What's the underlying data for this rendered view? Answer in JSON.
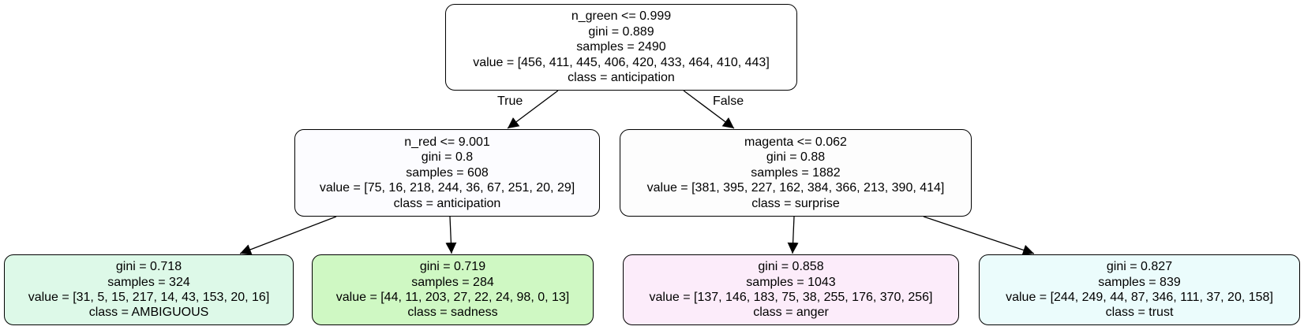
{
  "nodes": {
    "root": {
      "split": "n_green <= 0.999",
      "gini": "gini = 0.889",
      "samples": "samples = 2490",
      "value": "value = [456, 411, 445, 406, 420, 433, 464, 410, 443]",
      "class": "class = anticipation",
      "fill": "#ffffff"
    },
    "left": {
      "split": "n_red <= 9.001",
      "gini": "gini = 0.8",
      "samples": "samples = 608",
      "value": "value = [75, 16, 218, 244, 36, 67, 251, 20, 29]",
      "class": "class = anticipation",
      "fill": "#fcfcff"
    },
    "right": {
      "split": "magenta <= 0.062",
      "gini": "gini = 0.88",
      "samples": "samples = 1882",
      "value": "value = [381, 395, 227, 162, 384, 366, 213, 390, 414]",
      "class": "class = surprise",
      "fill": "#fdfdfd"
    },
    "ll": {
      "gini": "gini = 0.718",
      "samples": "samples = 324",
      "value": "value = [31, 5, 15, 217, 14, 43, 153, 20, 16]",
      "class": "class = AMBIGUOUS",
      "fill": "#ddf9e8"
    },
    "lr": {
      "gini": "gini = 0.719",
      "samples": "samples = 284",
      "value": "value = [44, 11, 203, 27, 22, 24, 98, 0, 13]",
      "class": "class = sadness",
      "fill": "#cff8c3"
    },
    "rl": {
      "gini": "gini = 0.858",
      "samples": "samples = 1043",
      "value": "value = [137, 146, 183, 75, 38, 255, 176, 370, 256]",
      "class": "class = anger",
      "fill": "#fcecfa"
    },
    "rr": {
      "gini": "gini = 0.827",
      "samples": "samples = 839",
      "value": "value = [244, 249, 44, 87, 346, 111, 37, 20, 158]",
      "class": "class = trust",
      "fill": "#ebfcfc"
    }
  },
  "edges": {
    "true_label": "True",
    "false_label": "False"
  }
}
